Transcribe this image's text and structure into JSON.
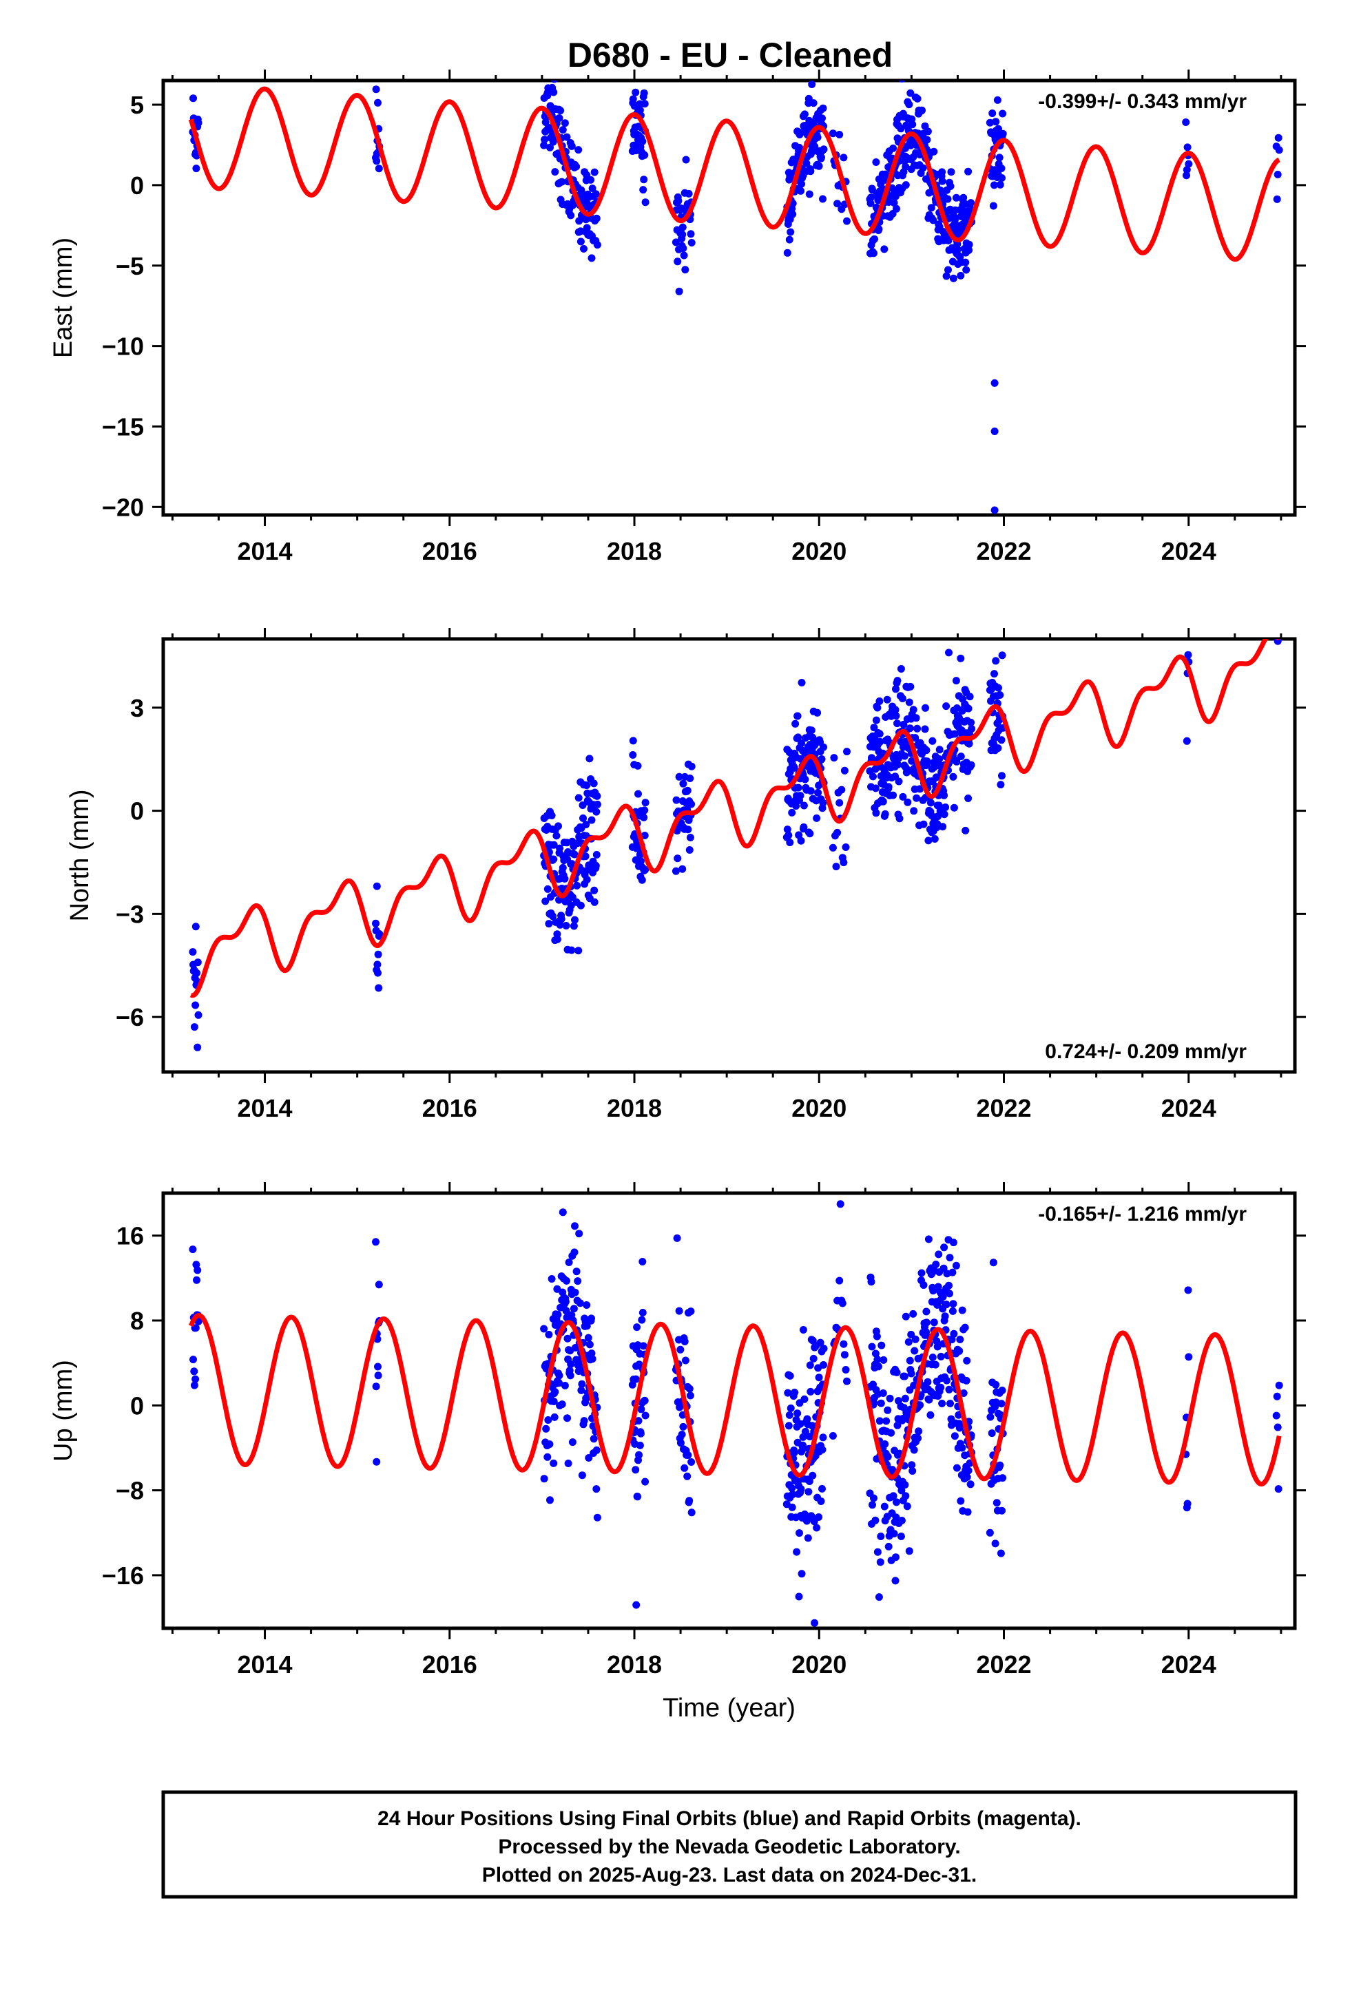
{
  "title": "D680  - EU - Cleaned",
  "footer": {
    "line1": "24 Hour Positions Using Final Orbits (blue) and Rapid Orbits (magenta).",
    "line2": "Processed by the Nevada Geodetic Laboratory.",
    "line3": "Plotted on 2025-Aug-23. Last data on 2024-Dec-31."
  },
  "colors": {
    "data_points": "#0000ff",
    "model_curve": "#ff0000",
    "frame": "#000000"
  },
  "chart_data": [
    {
      "type": "scatter",
      "component": "east",
      "ylabel": "East (mm)",
      "xlabel": "",
      "rate_text": "-0.399+/- 0.343 mm/yr",
      "rate_position": "top-right",
      "xlim": [
        2012.9,
        2025.15
      ],
      "ylim": [
        -20.5,
        6.5
      ],
      "xticks": [
        2014,
        2016,
        2018,
        2020,
        2022,
        2024
      ],
      "yticks": [
        5,
        0,
        -5,
        -10,
        -15,
        -20
      ],
      "grid": false,
      "model": {
        "offset": 3.1,
        "rate": -0.399,
        "annual_amp": 3.2,
        "annual_phase": 0.0,
        "semi_amp": 0.0,
        "semi_phase": 0.0
      },
      "segments": [
        {
          "t0": 2013.22,
          "t1": 2013.28,
          "n": 14,
          "seed": 11
        },
        {
          "t0": 2015.2,
          "t1": 2015.24,
          "n": 10,
          "seed": 12
        },
        {
          "t0": 2017.02,
          "t1": 2017.6,
          "n": 150,
          "seed": 13
        },
        {
          "t0": 2017.98,
          "t1": 2018.12,
          "n": 40,
          "seed": 14
        },
        {
          "t0": 2018.45,
          "t1": 2018.62,
          "n": 40,
          "seed": 15
        },
        {
          "t0": 2019.65,
          "t1": 2020.05,
          "n": 110,
          "seed": 16
        },
        {
          "t0": 2020.15,
          "t1": 2020.3,
          "n": 14,
          "seed": 17
        },
        {
          "t0": 2020.55,
          "t1": 2021.65,
          "n": 300,
          "seed": 18
        },
        {
          "t0": 2021.85,
          "t1": 2021.99,
          "n": 35,
          "seed": 19
        },
        {
          "t0": 2023.97,
          "t1": 2024.0,
          "n": 6,
          "seed": 20
        },
        {
          "t0": 2024.95,
          "t1": 2024.98,
          "n": 5,
          "seed": 21
        }
      ],
      "scatter_sd": 1.4,
      "outliers": [
        {
          "x": 2021.9,
          "y": -12.3
        },
        {
          "x": 2021.9,
          "y": -15.3
        },
        {
          "x": 2021.9,
          "y": -20.2
        }
      ]
    },
    {
      "type": "scatter",
      "component": "north",
      "ylabel": "North (mm)",
      "xlabel": "",
      "rate_text": "0.724+/- 0.209 mm/yr",
      "rate_position": "bottom-right",
      "xlim": [
        2012.9,
        2025.15
      ],
      "ylim": [
        -7.6,
        5.0
      ],
      "xticks": [
        2014,
        2016,
        2018,
        2020,
        2022,
        2024
      ],
      "yticks": [
        3,
        0,
        -3,
        -6
      ],
      "grid": false,
      "model": {
        "offset": -4.2,
        "rate": 0.724,
        "annual_amp": 0.8,
        "annual_phase": 1.4,
        "semi_amp": 0.45,
        "semi_phase": 0.6
      },
      "segments": [
        {
          "t0": 2013.22,
          "t1": 2013.28,
          "n": 14,
          "seed": 31
        },
        {
          "t0": 2015.2,
          "t1": 2015.24,
          "n": 10,
          "seed": 32
        },
        {
          "t0": 2017.02,
          "t1": 2017.6,
          "n": 150,
          "seed": 33
        },
        {
          "t0": 2017.98,
          "t1": 2018.12,
          "n": 40,
          "seed": 34
        },
        {
          "t0": 2018.45,
          "t1": 2018.62,
          "n": 40,
          "seed": 35
        },
        {
          "t0": 2019.65,
          "t1": 2020.05,
          "n": 110,
          "seed": 36
        },
        {
          "t0": 2020.15,
          "t1": 2020.3,
          "n": 14,
          "seed": 37
        },
        {
          "t0": 2020.55,
          "t1": 2021.65,
          "n": 300,
          "seed": 38
        },
        {
          "t0": 2021.85,
          "t1": 2021.99,
          "n": 35,
          "seed": 39
        },
        {
          "t0": 2023.97,
          "t1": 2024.0,
          "n": 6,
          "seed": 40
        },
        {
          "t0": 2024.95,
          "t1": 2024.98,
          "n": 5,
          "seed": 41
        }
      ],
      "scatter_sd": 0.9,
      "outliers": []
    },
    {
      "type": "scatter",
      "component": "up",
      "ylabel": "Up (mm)",
      "xlabel": "Time (year)",
      "rate_text": "-0.165+/- 1.216 mm/yr",
      "rate_position": "top-right",
      "xlim": [
        2012.9,
        2025.15
      ],
      "ylim": [
        -21,
        20
      ],
      "xticks": [
        2014,
        2016,
        2018,
        2020,
        2022,
        2024
      ],
      "yticks": [
        16,
        8,
        0,
        -8,
        -16
      ],
      "grid": false,
      "model": {
        "offset": 1.5,
        "rate": -0.165,
        "annual_amp": 7.0,
        "annual_phase": -1.8,
        "semi_amp": 0.0,
        "semi_phase": 0.0
      },
      "segments": [
        {
          "t0": 2013.22,
          "t1": 2013.28,
          "n": 14,
          "seed": 51
        },
        {
          "t0": 2015.2,
          "t1": 2015.24,
          "n": 10,
          "seed": 52
        },
        {
          "t0": 2017.02,
          "t1": 2017.6,
          "n": 150,
          "seed": 53
        },
        {
          "t0": 2017.98,
          "t1": 2018.12,
          "n": 40,
          "seed": 54
        },
        {
          "t0": 2018.45,
          "t1": 2018.62,
          "n": 40,
          "seed": 55
        },
        {
          "t0": 2019.65,
          "t1": 2020.05,
          "n": 110,
          "seed": 56
        },
        {
          "t0": 2020.15,
          "t1": 2020.3,
          "n": 14,
          "seed": 57
        },
        {
          "t0": 2020.55,
          "t1": 2021.65,
          "n": 300,
          "seed": 58
        },
        {
          "t0": 2021.85,
          "t1": 2021.99,
          "n": 35,
          "seed": 59
        },
        {
          "t0": 2023.97,
          "t1": 2024.0,
          "n": 6,
          "seed": 60
        },
        {
          "t0": 2024.95,
          "t1": 2024.98,
          "n": 5,
          "seed": 61
        }
      ],
      "scatter_sd": 5.0,
      "outliers": [
        {
          "x": 2019.95,
          "y": -20.5
        },
        {
          "x": 2018.02,
          "y": -18.8
        }
      ]
    }
  ]
}
